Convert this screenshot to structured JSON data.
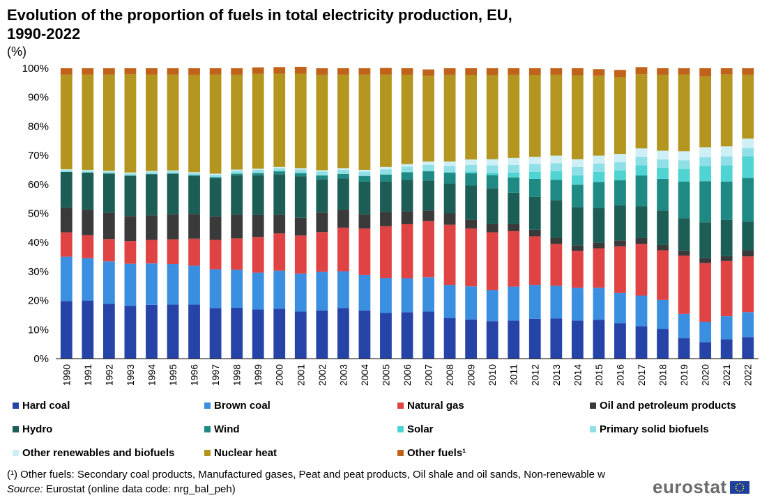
{
  "header": {
    "title_line1": "Evolution of the proportion of fuels in total electricity production, EU,",
    "title_line2": "1990-2022",
    "unit": "(%)"
  },
  "footer": {
    "footnote": "(¹) Other fuels: Secondary coal products, Manufactured gases, Peat and peat products, Oil shale and oil sands, Non-renewable w",
    "source_label": "Source:",
    "source_text": " Eurostat (online data code: nrg_bal_peh)",
    "logo_text": "eurostat",
    "logo_icon": "eu-flag-icon"
  },
  "chart_data": {
    "type": "bar",
    "stacked": true,
    "categories": [
      "1990",
      "1991",
      "1992",
      "1993",
      "1994",
      "1995",
      "1996",
      "1997",
      "1998",
      "1999",
      "2000",
      "2001",
      "2002",
      "2003",
      "2004",
      "2005",
      "2006",
      "2007",
      "2008",
      "2009",
      "2010",
      "2011",
      "2012",
      "2013",
      "2014",
      "2015",
      "2016",
      "2017",
      "2018",
      "2019",
      "2020",
      "2021",
      "2022"
    ],
    "ylim": [
      0,
      100
    ],
    "yticks": [
      "0%",
      "10%",
      "20%",
      "30%",
      "40%",
      "50%",
      "60%",
      "70%",
      "80%",
      "90%",
      "100%"
    ],
    "grid": false,
    "legend_position": "bottom",
    "series": [
      {
        "name": "Hard coal",
        "color": "#2644a8",
        "values": [
          19.8,
          20.0,
          18.9,
          18.2,
          18.5,
          18.6,
          18.6,
          17.4,
          17.5,
          16.9,
          17.2,
          16.2,
          16.6,
          17.4,
          16.6,
          15.7,
          16.0,
          16.2,
          14.0,
          13.5,
          12.9,
          13.1,
          13.7,
          13.8,
          13.1,
          13.4,
          12.2,
          11.2,
          10.2,
          7.1,
          5.7,
          6.6,
          7.4
        ]
      },
      {
        "name": "Brown coal",
        "color": "#3b8fe0",
        "values": [
          15.3,
          14.6,
          14.6,
          14.5,
          14.3,
          14.0,
          13.4,
          13.4,
          13.1,
          12.7,
          13.1,
          13.1,
          13.3,
          12.7,
          12.2,
          12.1,
          11.7,
          11.8,
          11.4,
          11.4,
          10.7,
          11.7,
          11.7,
          11.3,
          11.3,
          11.0,
          10.4,
          10.5,
          10.0,
          8.3,
          7.0,
          8.0,
          8.6
        ]
      },
      {
        "name": "Natural gas",
        "color": "#e04343",
        "values": [
          8.4,
          7.9,
          7.7,
          7.8,
          8.1,
          8.5,
          9.3,
          10.1,
          10.8,
          12.3,
          12.8,
          13.1,
          13.7,
          15.0,
          16.0,
          17.8,
          18.6,
          19.4,
          20.7,
          19.9,
          19.9,
          19.1,
          16.7,
          14.4,
          12.7,
          13.6,
          16.1,
          17.8,
          17.1,
          20.1,
          20.2,
          19.0,
          19.2
        ]
      },
      {
        "name": "Oil and petroleum products",
        "color": "#3a3a3a",
        "values": [
          8.5,
          8.8,
          9.1,
          8.6,
          8.4,
          8.6,
          8.5,
          8.1,
          8.2,
          7.6,
          6.5,
          6.1,
          6.7,
          6.2,
          4.9,
          4.9,
          4.4,
          3.6,
          3.9,
          3.1,
          2.8,
          2.4,
          2.3,
          2.0,
          1.9,
          1.9,
          2.0,
          2.0,
          1.8,
          1.7,
          1.7,
          1.7,
          2.1
        ]
      },
      {
        "name": "Hydro",
        "color": "#1c5e56",
        "values": [
          12.3,
          12.8,
          13.4,
          13.9,
          14.2,
          13.9,
          13.1,
          13.1,
          13.5,
          13.6,
          13.9,
          14.3,
          11.5,
          10.7,
          11.2,
          10.6,
          10.9,
          10.3,
          10.3,
          11.7,
          12.4,
          10.8,
          11.3,
          13.1,
          13.2,
          12.0,
          12.1,
          10.9,
          11.9,
          11.2,
          12.3,
          12.5,
          9.9
        ]
      },
      {
        "name": "Wind",
        "color": "#1f8a84",
        "values": [
          0.0,
          0.0,
          0.1,
          0.1,
          0.1,
          0.2,
          0.3,
          0.4,
          0.6,
          0.8,
          1.0,
          1.1,
          1.3,
          1.6,
          2.0,
          2.3,
          2.6,
          3.2,
          3.7,
          4.2,
          4.5,
          5.3,
          6.2,
          7.0,
          7.7,
          8.9,
          8.6,
          10.7,
          10.9,
          12.6,
          14.2,
          13.2,
          15.0
        ]
      },
      {
        "name": "Solar",
        "color": "#4fd3d3",
        "values": [
          0.0,
          0.0,
          0.0,
          0.0,
          0.0,
          0.0,
          0.0,
          0.0,
          0.0,
          0.0,
          0.0,
          0.0,
          0.0,
          0.0,
          0.0,
          0.1,
          0.1,
          0.2,
          0.3,
          0.6,
          0.9,
          1.7,
          2.4,
          2.9,
          3.2,
          3.5,
          3.4,
          3.5,
          3.8,
          4.3,
          5.2,
          5.6,
          7.5
        ]
      },
      {
        "name": "Primary solid biofuels",
        "color": "#8fe0e6",
        "values": [
          0.6,
          0.6,
          0.6,
          0.7,
          0.7,
          0.7,
          0.7,
          0.8,
          1.0,
          1.1,
          1.1,
          1.2,
          1.3,
          1.4,
          1.5,
          1.7,
          1.8,
          2.0,
          2.1,
          2.3,
          2.5,
          2.6,
          2.7,
          2.8,
          2.9,
          2.9,
          2.9,
          2.9,
          2.9,
          3.0,
          3.1,
          3.1,
          2.8
        ]
      },
      {
        "name": "Other renewables and biofuels",
        "color": "#cdeff5",
        "values": [
          0.3,
          0.3,
          0.3,
          0.3,
          0.3,
          0.3,
          0.3,
          0.4,
          0.4,
          0.4,
          0.4,
          0.5,
          0.5,
          0.6,
          0.6,
          0.8,
          0.9,
          1.2,
          1.5,
          1.9,
          2.1,
          2.4,
          2.5,
          2.6,
          2.7,
          2.7,
          2.8,
          2.9,
          3.0,
          3.1,
          3.4,
          3.4,
          3.3
        ]
      },
      {
        "name": "Nuclear heat",
        "color": "#b3951f",
        "values": [
          32.6,
          32.8,
          33.1,
          33.9,
          33.2,
          33.0,
          33.5,
          34.1,
          32.6,
          32.7,
          32.2,
          32.6,
          32.8,
          32.2,
          32.8,
          31.8,
          30.7,
          29.5,
          29.8,
          29.0,
          28.9,
          28.6,
          28.1,
          27.8,
          28.8,
          27.5,
          26.5,
          25.6,
          26.1,
          26.4,
          24.4,
          24.8,
          21.9
        ]
      },
      {
        "name": "Other fuels¹",
        "color": "#c0621a",
        "values": [
          2.2,
          2.2,
          2.2,
          2.0,
          2.2,
          2.2,
          2.3,
          2.2,
          2.3,
          2.2,
          2.2,
          2.3,
          2.3,
          2.2,
          2.2,
          2.3,
          2.3,
          2.2,
          2.3,
          2.4,
          2.4,
          2.3,
          2.4,
          2.3,
          2.5,
          2.3,
          2.4,
          2.4,
          2.3,
          2.2,
          2.8,
          2.1,
          2.3
        ]
      }
    ]
  }
}
